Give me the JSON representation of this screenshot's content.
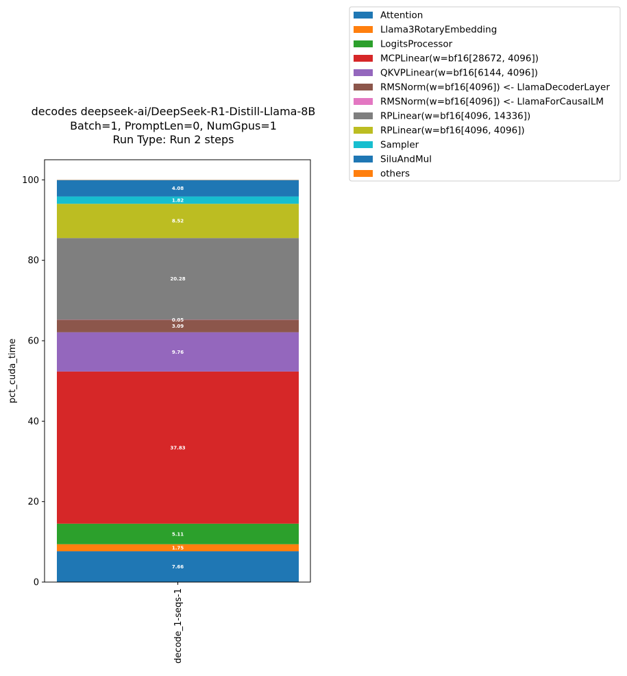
{
  "chart_data": {
    "type": "bar",
    "stacked": true,
    "title_lines": [
      "decodes deepseek-ai/DeepSeek-R1-Distill-Llama-8B",
      "Batch=1, PromptLen=0, NumGpus=1",
      "Run Type: Run 2 steps"
    ],
    "xlabel": "",
    "ylabel": "pct_cuda_time",
    "categories": [
      "decode_1-seqs-1"
    ],
    "ylim": [
      0,
      105
    ],
    "yticks": [
      0,
      20,
      40,
      60,
      80,
      100
    ],
    "grid": false,
    "legend_position": "outside-top-right",
    "series": [
      {
        "name": "Attention",
        "color": "#1f77b4",
        "values": [
          7.66
        ],
        "label": "7.66"
      },
      {
        "name": "Llama3RotaryEmbedding",
        "color": "#ff7f0e",
        "values": [
          1.75
        ],
        "label": "1.75"
      },
      {
        "name": "LogitsProcessor",
        "color": "#2ca02c",
        "values": [
          5.11
        ],
        "label": "5.11"
      },
      {
        "name": "MCPLinear(w=bf16[28672, 4096])",
        "color": "#d62728",
        "values": [
          37.83
        ],
        "label": "37.83"
      },
      {
        "name": "QKVPLinear(w=bf16[6144, 4096])",
        "color": "#9467bd",
        "values": [
          9.76
        ],
        "label": "9.76"
      },
      {
        "name": "RMSNorm(w=bf16[4096]) <- LlamaDecoderLayer",
        "color": "#8c564b",
        "values": [
          3.09
        ],
        "label": "3.09"
      },
      {
        "name": "RMSNorm(w=bf16[4096]) <- LlamaForCausalLM",
        "color": "#e377c2",
        "values": [
          0.05
        ],
        "label": "0.05"
      },
      {
        "name": "RPLinear(w=bf16[4096, 14336])",
        "color": "#7f7f7f",
        "values": [
          20.28
        ],
        "label": "20.28"
      },
      {
        "name": "RPLinear(w=bf16[4096, 4096])",
        "color": "#bcbd22",
        "values": [
          8.52
        ],
        "label": "8.52"
      },
      {
        "name": "Sampler",
        "color": "#17becf",
        "values": [
          1.82
        ],
        "label": "1.82"
      },
      {
        "name": "SiluAndMul",
        "color": "#1f77b4",
        "values": [
          4.08
        ],
        "label": "4.08"
      },
      {
        "name": "others",
        "color": "#ff7f0e",
        "values": [
          0.05
        ],
        "label": ""
      }
    ]
  }
}
